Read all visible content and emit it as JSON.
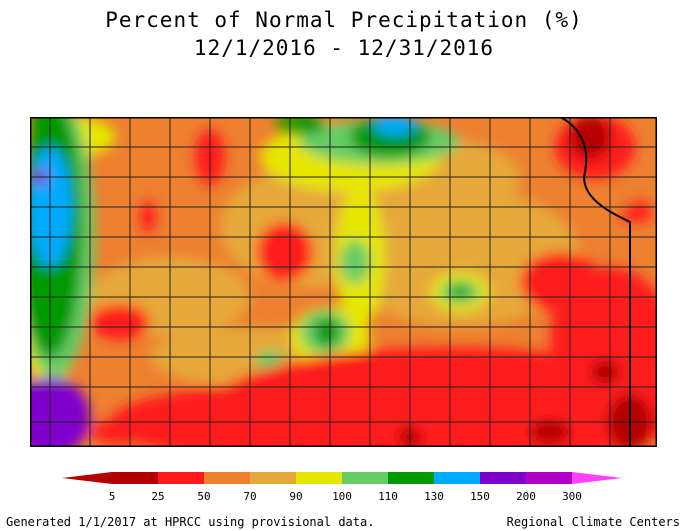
{
  "title": {
    "line1": "Percent of Normal Precipitation (%)",
    "line2": "12/1/2016 - 12/31/2016"
  },
  "legend": {
    "ticks": [
      "5",
      "25",
      "50",
      "70",
      "90",
      "100",
      "110",
      "130",
      "150",
      "200",
      "300"
    ],
    "colors": [
      "#b30000",
      "#ff1a1a",
      "#ee8030",
      "#e6a83a",
      "#e6e600",
      "#66cc66",
      "#009900",
      "#00aaff",
      "#8000cc",
      "#b000c8",
      "#ff40ff"
    ]
  },
  "map": {
    "region": "Kansas",
    "base_color": "#ee8030"
  },
  "footer": {
    "left": "Generated 1/1/2017 at HPRCC using provisional data.",
    "right": "Regional Climate Centers"
  }
}
